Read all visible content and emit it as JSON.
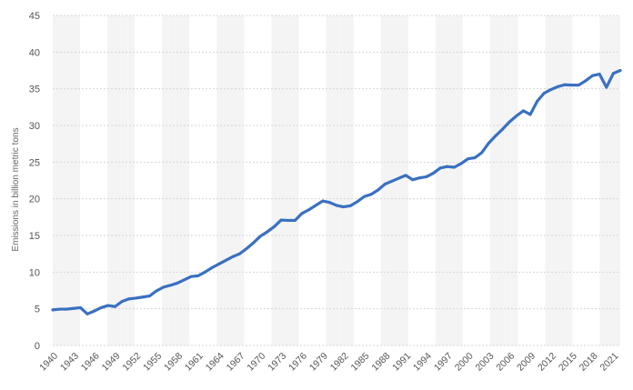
{
  "chart_data": {
    "type": "line",
    "title": "",
    "xlabel": "",
    "ylabel": "Emissions in billion metric tons",
    "ylim": [
      0,
      45
    ],
    "yticks": [
      "0",
      "5",
      "10",
      "15",
      "20",
      "25",
      "30",
      "35",
      "40",
      "45"
    ],
    "xticks": [
      "1940",
      "1943",
      "1946",
      "1949",
      "1952",
      "1955",
      "1958",
      "1961",
      "1964",
      "1967",
      "1970",
      "1973",
      "1976",
      "1979",
      "1982",
      "1985",
      "1988",
      "1991",
      "1994",
      "1997",
      "2000",
      "2003",
      "2006",
      "2009",
      "2012",
      "2015",
      "2018",
      "2021"
    ],
    "grid": true,
    "line_color": "#3a70c1",
    "band_color": "#f4f4f4",
    "grid_color": "#d6d6d6",
    "x": [
      1940,
      1941,
      1942,
      1943,
      1944,
      1945,
      1946,
      1947,
      1948,
      1949,
      1950,
      1951,
      1952,
      1953,
      1954,
      1955,
      1956,
      1957,
      1958,
      1959,
      1960,
      1961,
      1962,
      1963,
      1964,
      1965,
      1966,
      1967,
      1968,
      1969,
      1970,
      1971,
      1972,
      1973,
      1974,
      1975,
      1976,
      1977,
      1978,
      1979,
      1980,
      1981,
      1982,
      1983,
      1984,
      1985,
      1986,
      1987,
      1988,
      1989,
      1990,
      1991,
      1992,
      1993,
      1994,
      1995,
      1996,
      1997,
      1998,
      1999,
      2000,
      2001,
      2002,
      2003,
      2004,
      2005,
      2006,
      2007,
      2008,
      2009,
      2010,
      2011,
      2012,
      2013,
      2014,
      2015,
      2016,
      2017,
      2018,
      2019,
      2020,
      2021,
      2022
    ],
    "series": [
      {
        "values": [
          4.85,
          4.95,
          4.95,
          5.05,
          5.15,
          4.3,
          4.7,
          5.15,
          5.45,
          5.3,
          6.0,
          6.35,
          6.45,
          6.6,
          6.75,
          7.45,
          7.95,
          8.2,
          8.5,
          8.95,
          9.4,
          9.5,
          10.0,
          10.6,
          11.1,
          11.6,
          12.1,
          12.5,
          13.2,
          14.0,
          14.9,
          15.5,
          16.2,
          17.1,
          17.05,
          17.05,
          18.0,
          18.5,
          19.1,
          19.7,
          19.5,
          19.1,
          18.9,
          19.05,
          19.6,
          20.3,
          20.6,
          21.2,
          22.0,
          22.4,
          22.8,
          23.2,
          22.6,
          22.85,
          23.0,
          23.5,
          24.2,
          24.4,
          24.3,
          24.8,
          25.45,
          25.6,
          26.3,
          27.6,
          28.6,
          29.5,
          30.5,
          31.3,
          32.0,
          31.5,
          33.3,
          34.4,
          34.9,
          35.3,
          35.55,
          35.5,
          35.5,
          36.1,
          36.8,
          37.0,
          35.2,
          37.1,
          37.5
        ]
      }
    ]
  }
}
